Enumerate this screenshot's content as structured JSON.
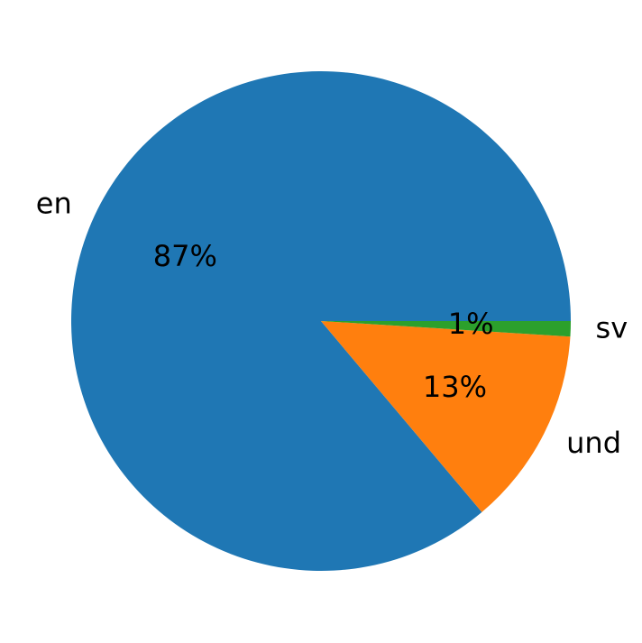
{
  "chart_data": {
    "type": "pie",
    "categories": [
      "en",
      "und",
      "sv"
    ],
    "values": [
      87,
      13,
      1
    ],
    "value_labels": [
      "87%",
      "13%",
      "1%"
    ],
    "colors": [
      "#1f77b4",
      "#ff7f0e",
      "#2ca02c"
    ]
  }
}
